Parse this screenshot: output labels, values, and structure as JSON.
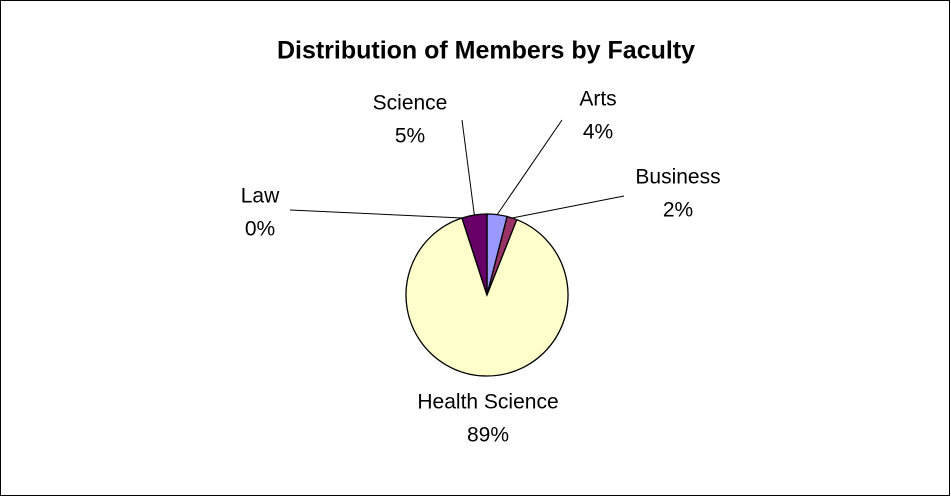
{
  "chart_data": {
    "type": "pie",
    "title": "Distribution of Members by Faculty",
    "categories": [
      "Arts",
      "Business",
      "Health Science",
      "Law",
      "Science"
    ],
    "values": [
      4,
      2,
      89,
      0,
      5
    ],
    "value_labels": [
      "4%",
      "2%",
      "89%",
      "0%",
      "5%"
    ],
    "colors": [
      "#9999ff",
      "#993366",
      "#ffffcc",
      "#ccffff",
      "#660066"
    ]
  }
}
